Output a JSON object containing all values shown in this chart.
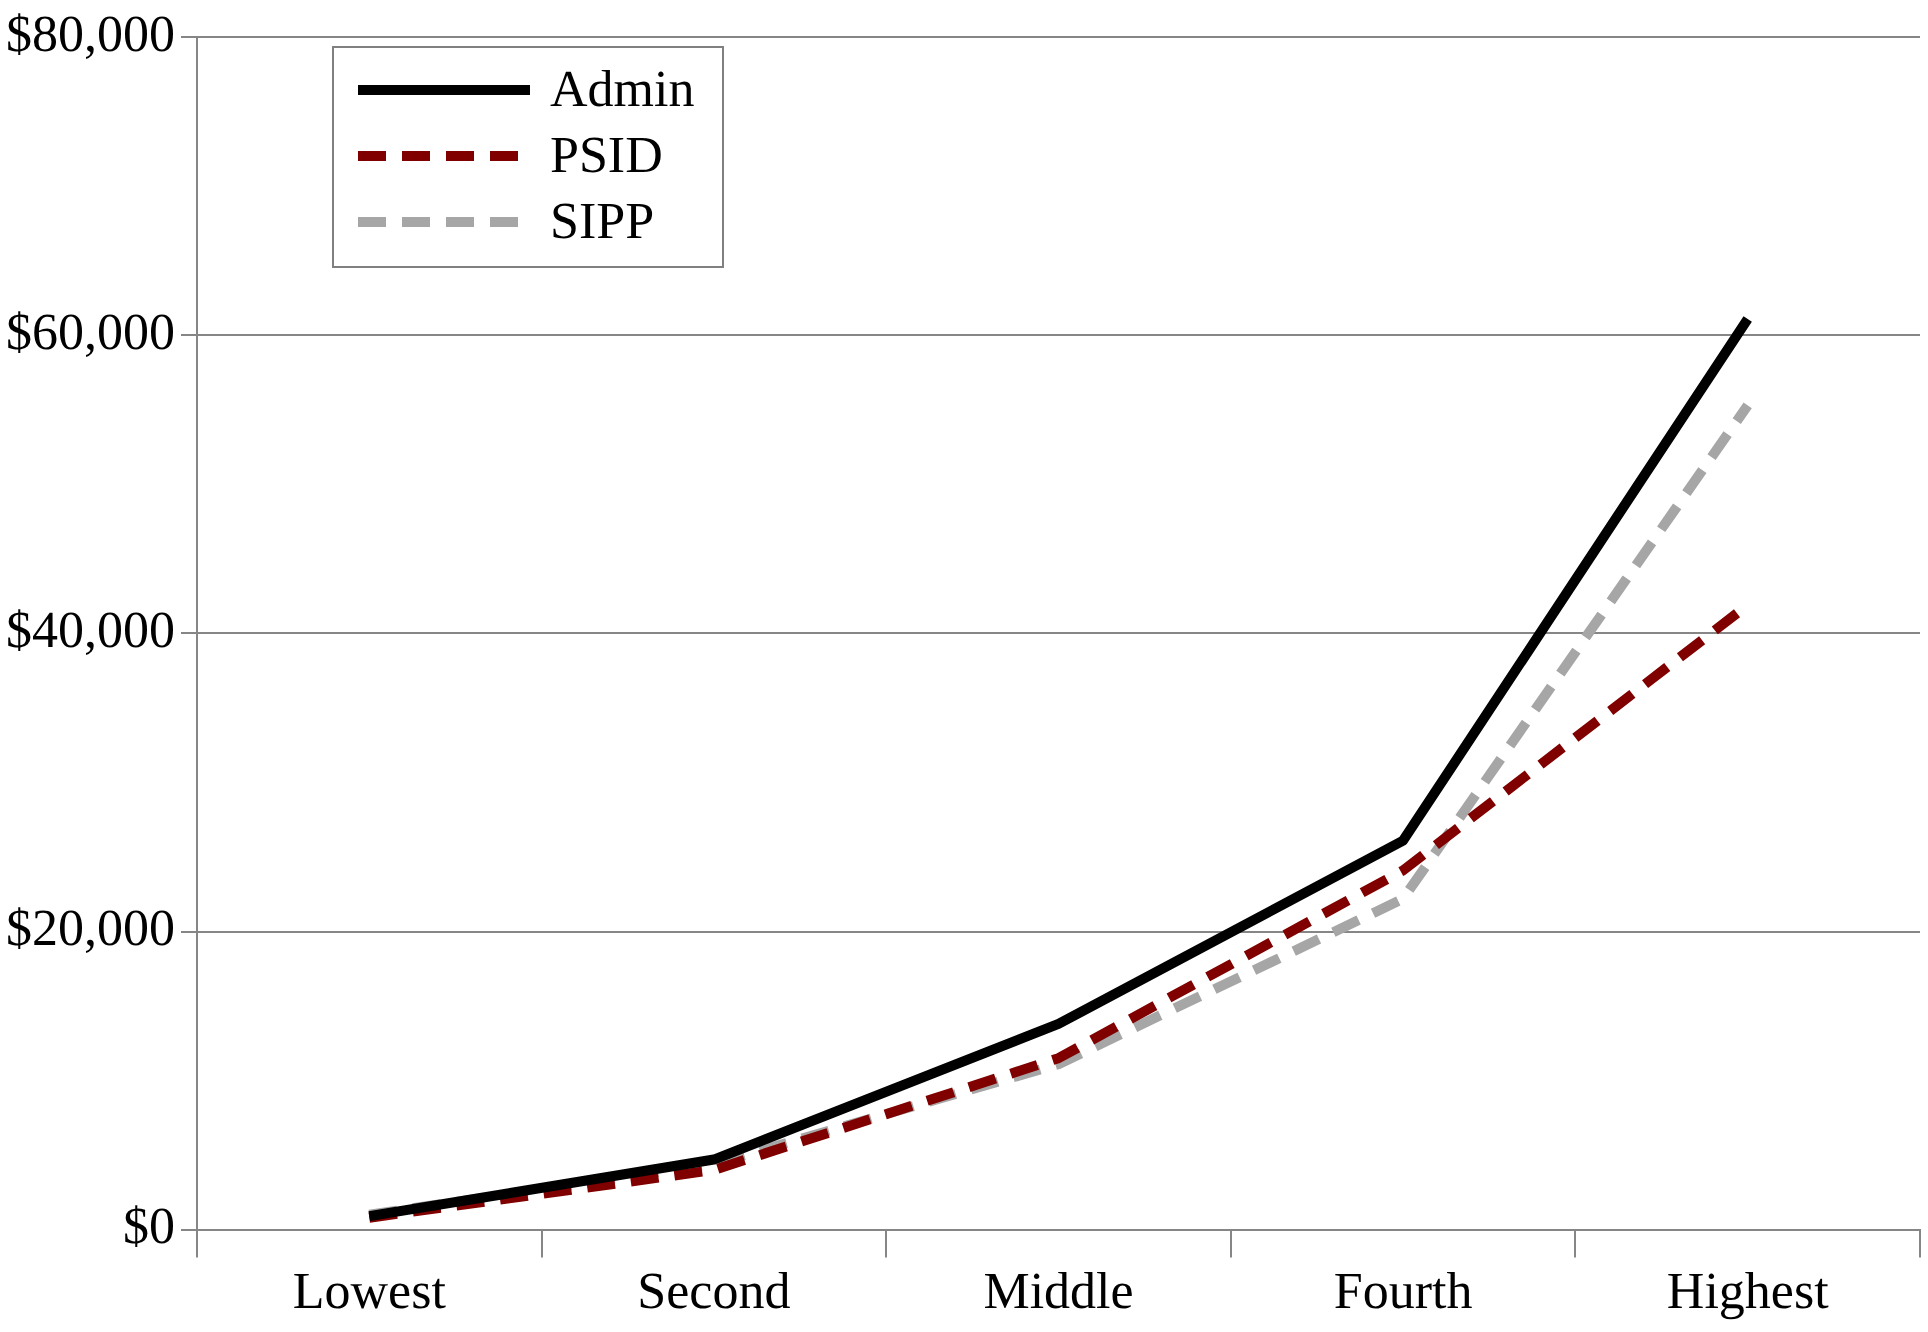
{
  "chart_data": {
    "type": "line",
    "categories": [
      "Lowest",
      "Second",
      "Middle",
      "Fourth",
      "Highest"
    ],
    "series": [
      {
        "name": "Admin",
        "color": "#000000",
        "line_style": "solid",
        "values": [
          900,
          4700,
          13800,
          26100,
          61100
        ]
      },
      {
        "name": "PSID",
        "color": "#800000",
        "line_style": "dashed",
        "values": [
          800,
          4000,
          11500,
          24100,
          41900
        ]
      },
      {
        "name": "SIPP",
        "color": "#a6a6a6",
        "line_style": "dashed",
        "values": [
          1000,
          4400,
          11100,
          22200,
          55300
        ]
      }
    ],
    "ylim": [
      0,
      80000
    ],
    "yticks": [
      {
        "value": 0,
        "label": "$0"
      },
      {
        "value": 20000,
        "label": "$20,000"
      },
      {
        "value": 40000,
        "label": "$40,000"
      },
      {
        "value": 60000,
        "label": "$60,000"
      },
      {
        "value": 80000,
        "label": "$80,000"
      }
    ],
    "grid": "y",
    "legend": "top left",
    "marker": "none"
  }
}
